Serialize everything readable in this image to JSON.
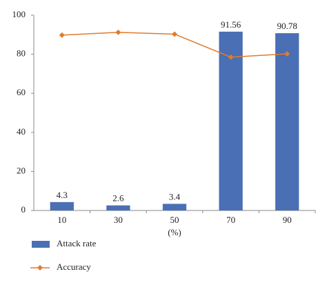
{
  "chart_data": {
    "type": "bar",
    "x_label": "(%)",
    "categories": [
      "10",
      "30",
      "50",
      "70",
      "90"
    ],
    "series": [
      {
        "name": "Attack rate",
        "type": "bar",
        "color": "#4a6fb5",
        "values": [
          4.3,
          2.6,
          3.4,
          91.56,
          90.78
        ]
      },
      {
        "name": "Accuracy",
        "type": "line",
        "color": "#e07b2a",
        "values": [
          89.8,
          91.2,
          90.3,
          78.5,
          80.2
        ]
      }
    ],
    "ylim": [
      0,
      100
    ],
    "yticks": [
      0,
      20,
      40,
      60,
      80,
      100
    ],
    "grid": false
  }
}
